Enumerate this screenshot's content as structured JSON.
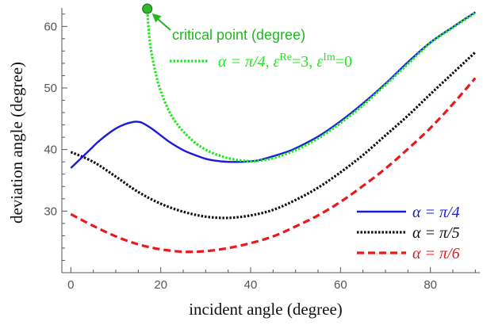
{
  "chart_data": {
    "type": "line",
    "xlabel": "incident angle (degree)",
    "ylabel": "deviation angle (degree)",
    "xlim": [
      -2,
      91
    ],
    "ylim": [
      20,
      63
    ],
    "xticks": [
      0,
      20,
      40,
      60,
      80
    ],
    "yticks": [
      30,
      40,
      50,
      60
    ],
    "xtick_labels": [
      "0",
      "20",
      "40",
      "60",
      "80"
    ],
    "ytick_labels": [
      "30",
      "40",
      "50",
      "60"
    ],
    "grid": false,
    "legend_position": "bottom-right",
    "series": [
      {
        "name": "α = π/4",
        "color": "#1a1adb",
        "style": "solid",
        "x": [
          0,
          2,
          4,
          6,
          8,
          10,
          12,
          14,
          15,
          16,
          18,
          20,
          22,
          25,
          28,
          30,
          32,
          35,
          38,
          40,
          42,
          45,
          48,
          50,
          55,
          60,
          65,
          70,
          75,
          80,
          85,
          90
        ],
        "y": [
          37,
          38.4,
          39.8,
          41.2,
          42.4,
          43.4,
          44.1,
          44.5,
          44.5,
          44.3,
          43.4,
          42.3,
          41.2,
          39.9,
          39,
          38.5,
          38.2,
          38,
          38,
          38.1,
          38.3,
          38.9,
          39.6,
          40.2,
          42.1,
          44.6,
          47.5,
          50.7,
          54.2,
          57.4,
          59.9,
          62.3
        ]
      },
      {
        "name": "α = π/5",
        "color": "#111111",
        "style": "dotted",
        "x": [
          0,
          5,
          10,
          15,
          20,
          25,
          30,
          35,
          40,
          45,
          50,
          55,
          60,
          65,
          70,
          75,
          80,
          85,
          90
        ],
        "y": [
          39.6,
          38,
          35.6,
          33.1,
          31.2,
          29.9,
          29.1,
          28.9,
          29.3,
          30.2,
          31.8,
          33.8,
          36.3,
          39.1,
          42.3,
          45.5,
          49,
          52.4,
          55.8
        ]
      },
      {
        "name": "α = π/6",
        "color": "#e8191b",
        "style": "dashed",
        "x": [
          0,
          5,
          10,
          15,
          20,
          25,
          30,
          35,
          40,
          45,
          50,
          55,
          60,
          65,
          70,
          75,
          80,
          85,
          90
        ],
        "y": [
          29.5,
          27.6,
          25.9,
          24.6,
          23.8,
          23.4,
          23.5,
          24,
          24.8,
          25.9,
          27.5,
          29.3,
          31.5,
          34.1,
          36.9,
          40.1,
          43.5,
          47.4,
          51.6
        ]
      },
      {
        "name": "α = π/4, ε^Re=3, ε^Im=0",
        "color": "#1ee81e",
        "style": "dotted",
        "x": [
          17,
          17.5,
          18,
          19,
          20,
          22,
          24,
          26,
          28,
          30,
          32,
          35,
          38,
          40,
          42,
          45,
          50,
          55,
          60,
          65,
          70,
          75,
          80,
          85,
          90
        ],
        "y": [
          62.5,
          58,
          55.5,
          52,
          49.5,
          46,
          43.8,
          42.2,
          40.9,
          40,
          39.3,
          38.6,
          38.2,
          38.1,
          38.2,
          38.6,
          39.9,
          41.8,
          44.3,
          47.2,
          50.5,
          53.9,
          57.3,
          59.8,
          62.2
        ]
      }
    ],
    "critical_point": {
      "x": 17,
      "y": 63,
      "color": "#2db82d"
    },
    "annotation": {
      "text": "critical point (degree)",
      "color": "#1fb81f"
    },
    "legend": [
      {
        "pre": "α = ",
        "frac": "π/4",
        "color": "#1a1adb"
      },
      {
        "pre": "α = ",
        "frac": "π/5",
        "color": "#111111"
      },
      {
        "pre": "α = ",
        "frac": "π/6",
        "color": "#e8191b"
      }
    ],
    "top_legend": {
      "color": "#1ee81e",
      "alpha_part": "α = π/4, ",
      "eps1_base": "ε",
      "eps1_sup": "Re",
      "eps1_val": "=3, ",
      "eps2_base": "ε",
      "eps2_sup": "Im",
      "eps2_val": "=0"
    }
  }
}
